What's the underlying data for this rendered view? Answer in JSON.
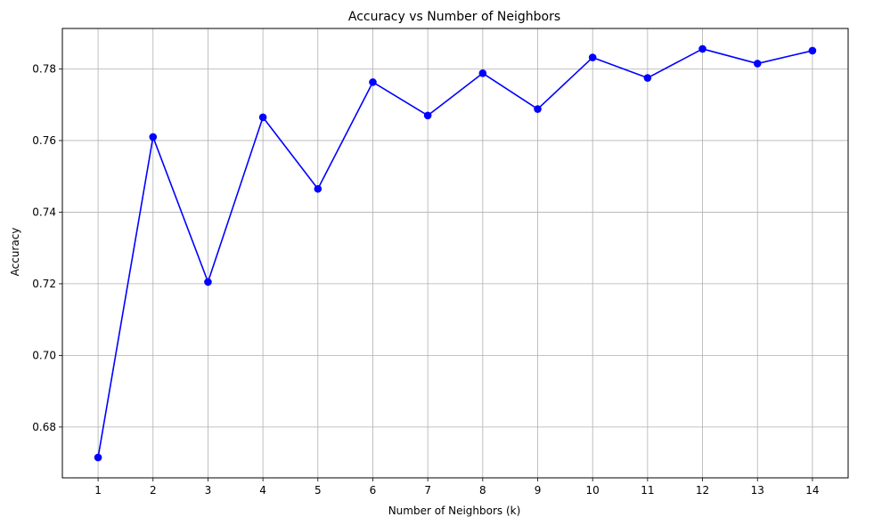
{
  "chart_data": {
    "type": "line",
    "title": "Accuracy vs Number of Neighbors",
    "xlabel": "Number of Neighbors (k)",
    "ylabel": "Accuracy",
    "x": [
      1,
      2,
      3,
      4,
      5,
      6,
      7,
      8,
      9,
      10,
      11,
      12,
      13,
      14
    ],
    "xticks": [
      "1",
      "2",
      "3",
      "4",
      "5",
      "6",
      "7",
      "8",
      "9",
      "10",
      "11",
      "12",
      "13",
      "14"
    ],
    "yticks": [
      "0.68",
      "0.70",
      "0.72",
      "0.74",
      "0.76",
      "0.78"
    ],
    "ytick_values": [
      0.68,
      0.7,
      0.72,
      0.74,
      0.76,
      0.78
    ],
    "series": [
      {
        "values": [
          0.6715,
          0.761,
          0.7205,
          0.7665,
          0.7465,
          0.7763,
          0.767,
          0.7788,
          0.7688,
          0.7832,
          0.7775,
          0.7856,
          0.7815,
          0.7851
        ],
        "color": "#0000ff",
        "marker": "circle"
      }
    ],
    "xlim": [
      0.35,
      14.65
    ],
    "ylim": [
      0.6658,
      0.7913
    ],
    "grid": true,
    "grid_color": "#b0b0b0"
  }
}
